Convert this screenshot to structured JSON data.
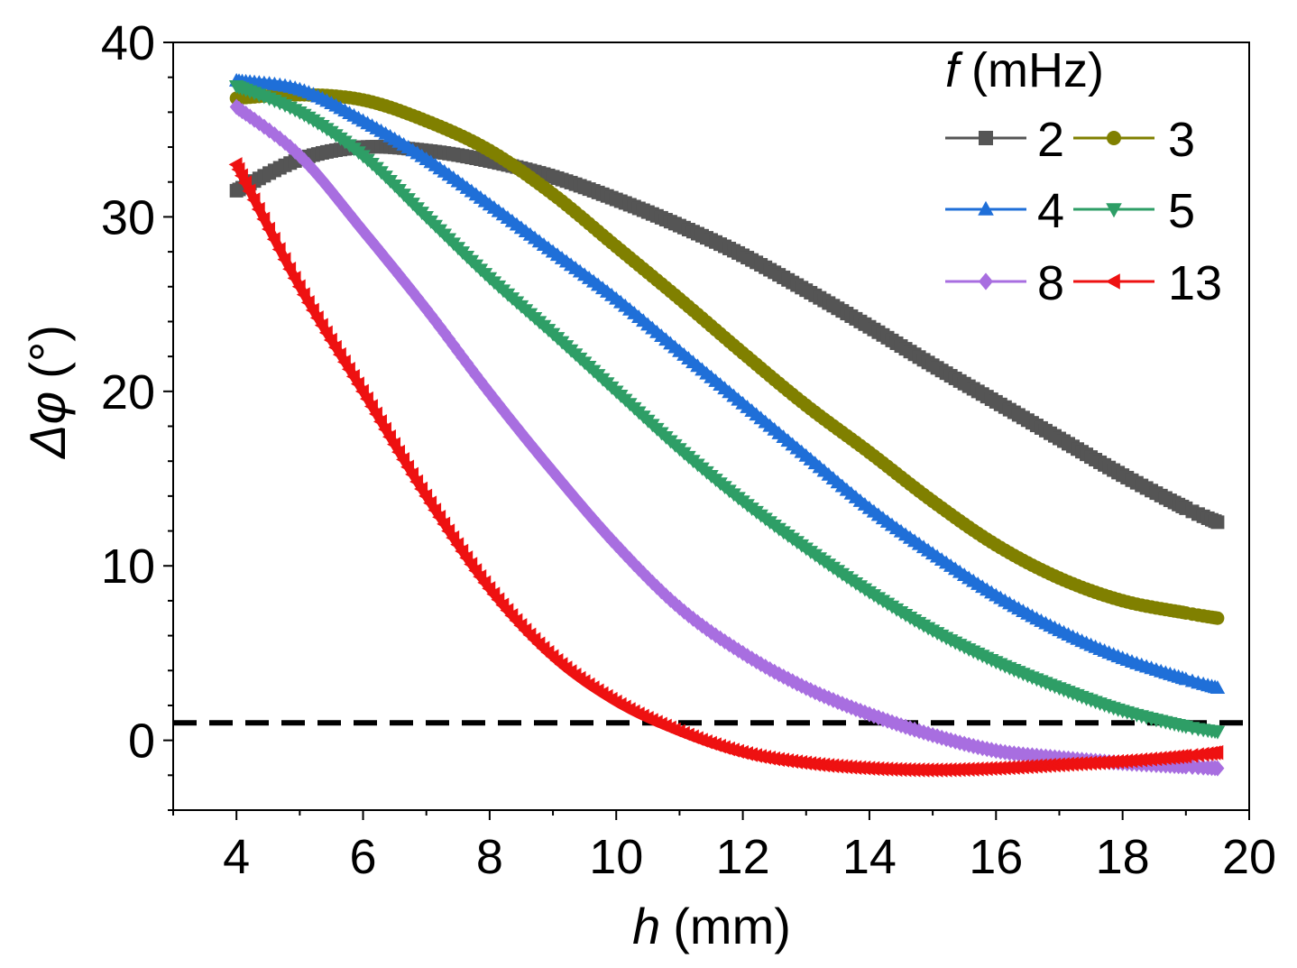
{
  "chart_data": {
    "type": "line",
    "title": "",
    "xlabel_var": "h",
    "xlabel_unit": "(mm)",
    "ylabel_var": "Δφ",
    "ylabel_unit": "(°)",
    "xlim": [
      3,
      20
    ],
    "ylim": [
      -4,
      40
    ],
    "xticks": [
      4,
      6,
      8,
      10,
      12,
      14,
      16,
      18,
      20
    ],
    "yticks": [
      0,
      10,
      20,
      30,
      40
    ],
    "reference_line": {
      "y": 1,
      "style": "dashed",
      "color": "#000000"
    },
    "legend": {
      "title_var": "f",
      "title_unit": "(mHz)",
      "position": "top-right",
      "columns": 2
    },
    "series": [
      {
        "name": "2",
        "color": "#555555",
        "marker": "square",
        "x": [
          4,
          5,
          6,
          7,
          8,
          9,
          10,
          11,
          12,
          13,
          14,
          15,
          16,
          17,
          18,
          19,
          19.5
        ],
        "y": [
          31.5,
          33.3,
          34.0,
          33.8,
          33.2,
          32.3,
          31.0,
          29.5,
          27.8,
          25.8,
          23.7,
          21.5,
          19.4,
          17.3,
          15.2,
          13.3,
          12.5
        ]
      },
      {
        "name": "3",
        "color": "#808000",
        "marker": "circle",
        "x": [
          4,
          5,
          6,
          7,
          8,
          9,
          10,
          11,
          12,
          13,
          14,
          15,
          16,
          17,
          18,
          19,
          19.5
        ],
        "y": [
          36.8,
          37.0,
          36.7,
          35.5,
          33.8,
          31.3,
          28.3,
          25.3,
          22.2,
          19.2,
          16.5,
          13.7,
          11.2,
          9.3,
          8.0,
          7.3,
          7.0
        ]
      },
      {
        "name": "4",
        "color": "#1f6fd8",
        "marker": "triangle-up",
        "x": [
          4,
          5,
          6,
          7,
          8,
          9,
          10,
          11,
          12,
          13,
          14,
          15,
          16,
          17,
          18,
          19,
          19.5
        ],
        "y": [
          37.8,
          37.3,
          35.5,
          33.3,
          30.7,
          28.0,
          25.3,
          22.3,
          19.3,
          16.3,
          13.3,
          10.7,
          8.3,
          6.3,
          4.7,
          3.5,
          3.0
        ]
      },
      {
        "name": "5",
        "color": "#2e9e66",
        "marker": "triangle-down",
        "x": [
          4,
          5,
          6,
          7,
          8,
          9,
          10,
          11,
          12,
          13,
          14,
          15,
          16,
          17,
          18,
          19,
          19.5
        ],
        "y": [
          37.5,
          36.0,
          33.5,
          30.0,
          26.5,
          23.3,
          20.0,
          16.7,
          13.7,
          11.0,
          8.5,
          6.3,
          4.5,
          3.0,
          1.7,
          0.8,
          0.5
        ]
      },
      {
        "name": "8",
        "color": "#a86ee0",
        "marker": "diamond",
        "x": [
          4,
          5,
          6,
          7,
          8,
          9,
          10,
          11,
          12,
          13,
          14,
          15,
          16,
          17,
          18,
          19,
          19.5
        ],
        "y": [
          36.3,
          33.5,
          29.2,
          24.7,
          19.9,
          15.4,
          11.2,
          7.6,
          5.0,
          3.0,
          1.5,
          0.3,
          -0.6,
          -1.0,
          -1.3,
          -1.5,
          -1.6
        ]
      },
      {
        "name": "13",
        "color": "#ee1111",
        "marker": "triangle-left",
        "x": [
          4,
          5,
          6,
          7,
          8,
          9,
          10,
          11,
          12,
          13,
          14,
          15,
          16,
          17,
          18,
          19,
          19.5
        ],
        "y": [
          33.0,
          26.0,
          20.0,
          14.0,
          8.7,
          4.8,
          2.2,
          0.5,
          -0.7,
          -1.3,
          -1.6,
          -1.7,
          -1.6,
          -1.4,
          -1.2,
          -0.9,
          -0.7
        ]
      }
    ]
  }
}
